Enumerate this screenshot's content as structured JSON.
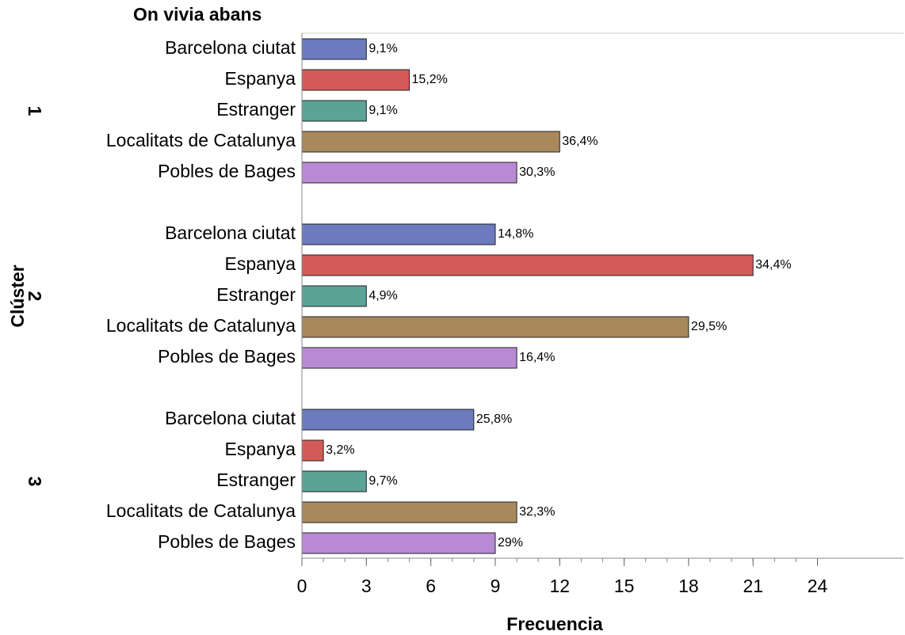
{
  "chart_data": {
    "type": "bar",
    "title": "On vivia abans",
    "y_label": "Clúster",
    "x_label": "Frecuencia",
    "categories": [
      "Barcelona ciutat",
      "Espanya",
      "Estranger",
      "Localitats de Catalunya",
      "Pobles de Bages"
    ],
    "colors": [
      "#6b7bbd",
      "#d45a5a",
      "#5aa396",
      "#a9885c",
      "#b98ad4"
    ],
    "groups": [
      {
        "name": "1",
        "values": [
          3,
          5,
          3,
          12,
          10
        ],
        "labels": [
          "9,1%",
          "15,2%",
          "9,1%",
          "36,4%",
          "30,3%"
        ]
      },
      {
        "name": "2",
        "values": [
          9,
          21,
          3,
          18,
          10
        ],
        "labels": [
          "14,8%",
          "34,4%",
          "4,9%",
          "29,5%",
          "16,4%"
        ]
      },
      {
        "name": "3",
        "values": [
          8,
          1,
          3,
          10,
          9
        ],
        "labels": [
          "25,8%",
          "3,2%",
          "9,7%",
          "32,3%",
          "29%"
        ]
      }
    ],
    "xlim": [
      0,
      28
    ],
    "xticks": [
      0,
      3,
      6,
      9,
      12,
      15,
      18,
      21,
      24
    ]
  }
}
